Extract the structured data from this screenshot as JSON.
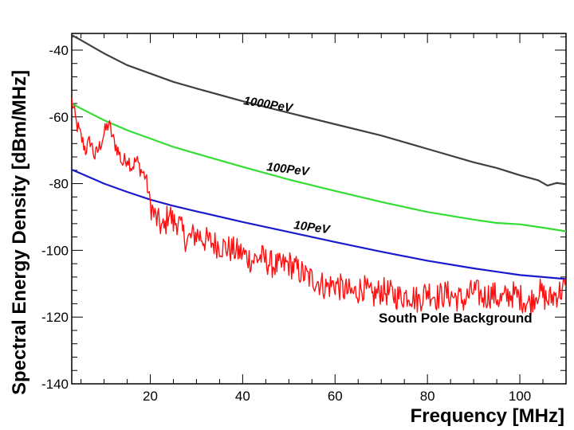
{
  "chart_data": {
    "type": "line",
    "title": "",
    "xlabel": "Frequency [MHz]",
    "ylabel": "Spectral Energy Density [dBm/MHz]",
    "xlim": [
      3,
      110
    ],
    "ylim": [
      -140,
      -35
    ],
    "x_ticks": [
      20,
      40,
      60,
      80,
      100
    ],
    "y_ticks": [
      -140,
      -120,
      -100,
      -80,
      -60,
      -40
    ],
    "x_tick_labels": [
      "20",
      "40",
      "60",
      "80",
      "100"
    ],
    "y_tick_labels": [
      "-140",
      "-120",
      "-100",
      "-80",
      "-60",
      "-40"
    ],
    "grid": false,
    "series": [
      {
        "name": "1000PeV",
        "label": "1000PeV",
        "color": "#404040",
        "x": [
          3,
          5,
          10,
          15,
          20,
          25,
          30,
          40,
          50,
          60,
          70,
          80,
          90,
          95,
          100,
          104,
          106,
          108,
          110
        ],
        "values": [
          -35.5,
          -37,
          -41,
          -44.5,
          -47,
          -49.5,
          -51.5,
          -55.3,
          -58.8,
          -62.2,
          -65.6,
          -69.6,
          -73.6,
          -75.3,
          -77.5,
          -79.0,
          -80.6,
          -79.8,
          -80.2
        ]
      },
      {
        "name": "100PeV",
        "label": "100PeV",
        "color": "#33dd33",
        "x": [
          3,
          5,
          10,
          15,
          20,
          25,
          30,
          40,
          50,
          60,
          70,
          80,
          90,
          95,
          100,
          105,
          110
        ],
        "values": [
          -56,
          -57.5,
          -61,
          -64,
          -66.5,
          -69,
          -71,
          -75,
          -78.8,
          -82.2,
          -85.5,
          -88.5,
          -90.8,
          -91.8,
          -92.2,
          -93.2,
          -94.3
        ]
      },
      {
        "name": "10PeV",
        "label": "10PeV",
        "color": "#1a1acc",
        "x": [
          3,
          5,
          10,
          15,
          20,
          25,
          30,
          40,
          50,
          60,
          70,
          80,
          90,
          100,
          110
        ],
        "values": [
          -75.8,
          -77,
          -80,
          -82.5,
          -84.8,
          -86.7,
          -88.3,
          -91.5,
          -94.5,
          -97.5,
          -100.4,
          -103.1,
          -105.4,
          -107.4,
          -108.6
        ]
      },
      {
        "name": "South Pole Background",
        "label": "South Pole Background",
        "color": "#ff1010",
        "x": [
          3,
          4,
          5,
          6,
          7,
          8,
          9,
          10,
          11,
          12,
          13,
          14,
          15,
          16,
          17,
          18,
          19,
          20,
          21,
          22,
          23,
          24,
          25,
          26,
          27,
          28,
          29,
          30,
          32,
          34,
          36,
          38,
          40,
          42,
          44,
          46,
          48,
          50,
          52,
          54,
          56,
          58,
          60,
          62,
          64,
          66,
          68,
          70,
          72,
          74,
          76,
          78,
          80,
          82,
          84,
          86,
          88,
          90,
          92,
          94,
          96,
          98,
          100,
          102,
          104,
          106,
          108,
          110
        ],
        "values": [
          -55,
          -62,
          -66,
          -70,
          -67,
          -72,
          -69,
          -65,
          -62,
          -67,
          -70,
          -74,
          -72,
          -75,
          -73,
          -76,
          -78,
          -86,
          -90,
          -92,
          -94,
          -88,
          -92,
          -91,
          -95,
          -97,
          -96,
          -95,
          -97,
          -98,
          -99,
          -100,
          -101,
          -103,
          -102,
          -104,
          -105,
          -104,
          -106,
          -108,
          -109,
          -111,
          -110,
          -112,
          -113,
          -111,
          -114,
          -112,
          -113,
          -114,
          -113,
          -115,
          -112,
          -114,
          -113,
          -114,
          -115,
          -112,
          -114,
          -113,
          -115,
          -113,
          -114,
          -116,
          -112,
          -115,
          -113,
          -111
        ]
      }
    ]
  }
}
